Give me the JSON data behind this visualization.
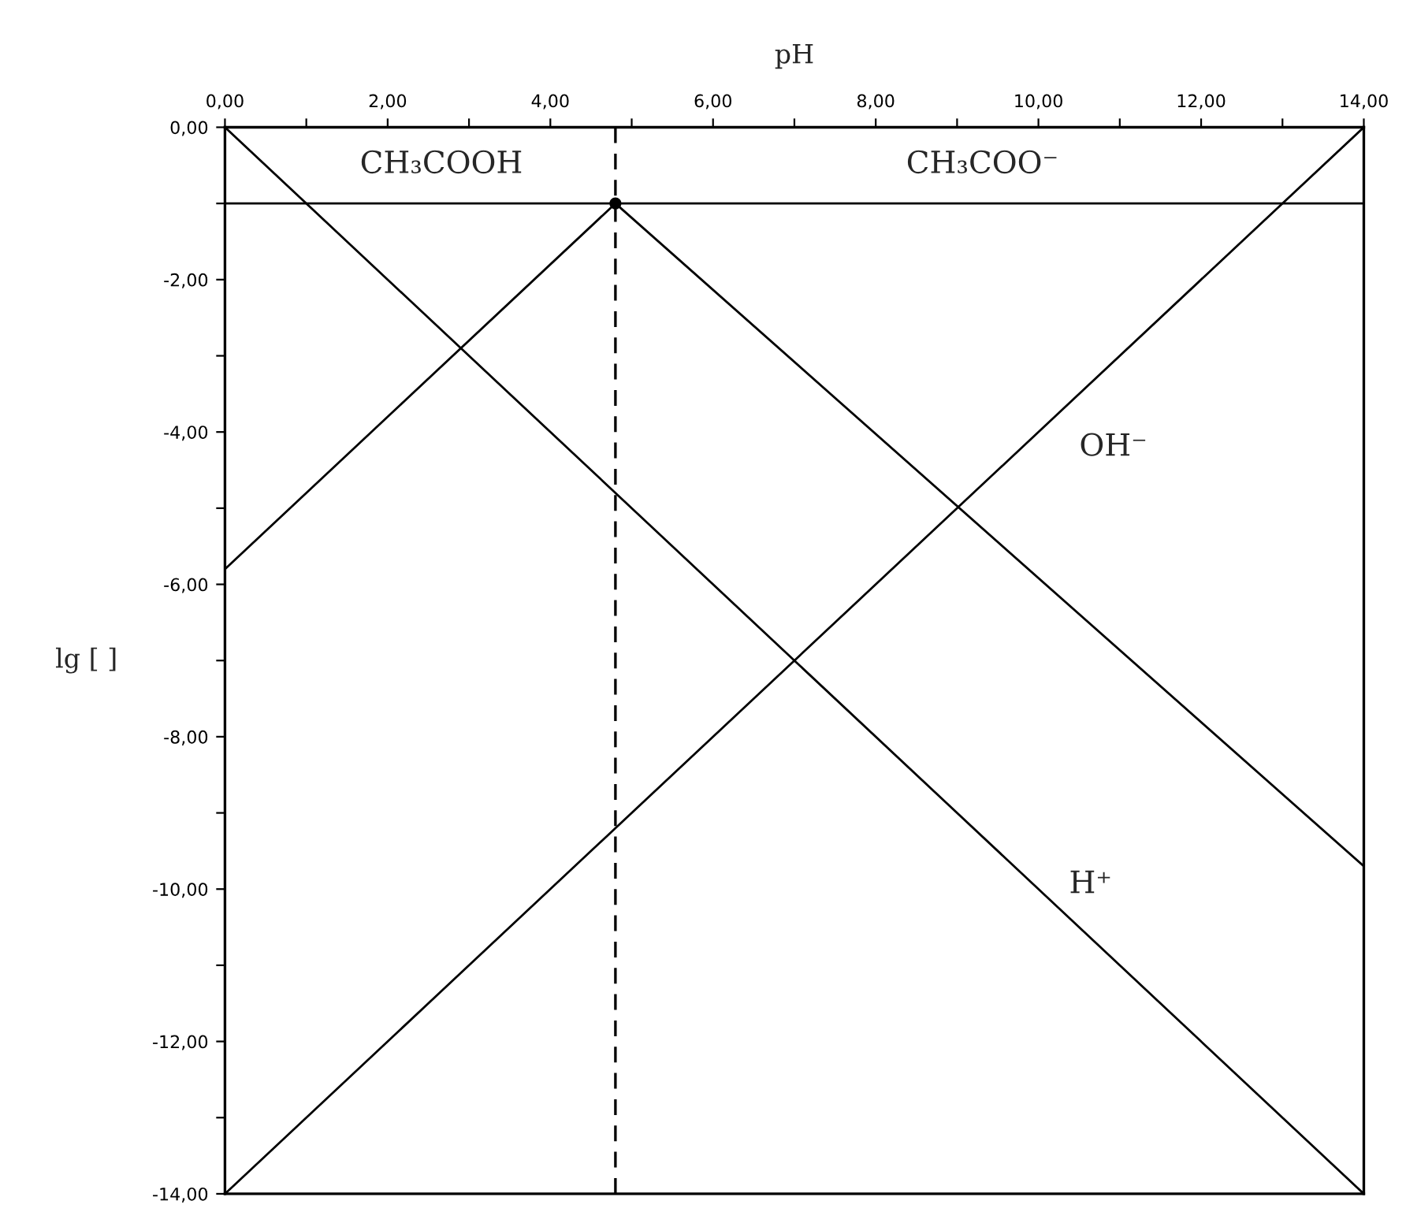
{
  "chart_data": {
    "type": "line",
    "xlabel": "pH",
    "ylabel": "lg [ ]",
    "series": [
      {
        "color": "#000000",
        "x": [
          0,
          14
        ],
        "values": [
          0,
          -14
        ]
      },
      {
        "color": "#000000",
        "x": [
          0,
          14
        ],
        "values": [
          -14,
          0
        ]
      },
      {
        "color": "#000000",
        "x": [
          0,
          4.8,
          14
        ],
        "values": [
          -1,
          -1,
          -9.7
        ]
      },
      {
        "color": "#000000",
        "x": [
          0,
          4.8,
          14
        ],
        "values": [
          -5.8,
          -1,
          -1
        ]
      },
      {
        "type": "scatter",
        "color": "#000000",
        "marker": "circle",
        "x": [
          4.8
        ],
        "values": [
          -1
        ]
      }
    ],
    "ref_lines": [
      {
        "axis": "x",
        "value": 4.8,
        "color": "#000000",
        "line_style": "dashed"
      }
    ],
    "annotations": [
      "CH₃COOH",
      "CH₃COO⁻",
      "OH⁻",
      "H⁺"
    ],
    "xlim": [
      0,
      14
    ],
    "xticks": [
      {
        "value": 0,
        "label": "0,00"
      },
      {
        "value": 1,
        "label": null
      },
      {
        "value": 2,
        "label": "2,00"
      },
      {
        "value": 3,
        "label": null
      },
      {
        "value": 4,
        "label": "4,00"
      },
      {
        "value": 5,
        "label": null
      },
      {
        "value": 6,
        "label": "6,00"
      },
      {
        "value": 7,
        "label": null
      },
      {
        "value": 8,
        "label": "8,00"
      },
      {
        "value": 9,
        "label": null
      },
      {
        "value": 10,
        "label": "10,00"
      },
      {
        "value": 11,
        "label": null
      },
      {
        "value": 12,
        "label": "12,00"
      },
      {
        "value": 13,
        "label": null
      },
      {
        "value": 14,
        "label": "14,00"
      }
    ],
    "ylim": [
      -14,
      0
    ],
    "yticks": [
      {
        "value": 0,
        "label": "0,00"
      },
      {
        "value": -1,
        "label": null
      },
      {
        "value": -2,
        "label": "-2,00"
      },
      {
        "value": -3,
        "label": null
      },
      {
        "value": -4,
        "label": "-4,00"
      },
      {
        "value": -5,
        "label": null
      },
      {
        "value": -6,
        "label": "-6,00"
      },
      {
        "value": -7,
        "label": null
      },
      {
        "value": -8,
        "label": "-8,00"
      },
      {
        "value": -9,
        "label": null
      },
      {
        "value": -10,
        "label": "-10,00"
      },
      {
        "value": -11,
        "label": null
      },
      {
        "value": -12,
        "label": "-12,00"
      },
      {
        "value": -13,
        "label": null
      },
      {
        "value": -14,
        "label": "-14,00"
      }
    ],
    "grid": false,
    "legend": false
  }
}
